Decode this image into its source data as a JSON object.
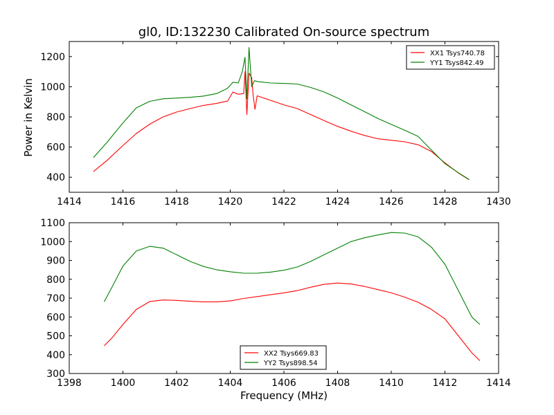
{
  "chart_data": [
    {
      "type": "line",
      "title": "gl0, ID:132230 Calibrated On-source spectrum",
      "xlabel": "",
      "ylabel": "Power in Kelvin",
      "xlim": [
        1414,
        1430
      ],
      "ylim": [
        300,
        1300
      ],
      "xticks": [
        1414,
        1416,
        1418,
        1420,
        1422,
        1424,
        1426,
        1428,
        1430
      ],
      "yticks": [
        400,
        600,
        800,
        1000,
        1200
      ],
      "legend_position": "top-right",
      "grid": false,
      "series": [
        {
          "name": "XX1 Tsys740.78",
          "color": "#ff0000",
          "points": [
            [
              1414.9,
              437
            ],
            [
              1415.4,
              510
            ],
            [
              1416.0,
              610
            ],
            [
              1416.5,
              690
            ],
            [
              1417.0,
              752
            ],
            [
              1417.5,
              800
            ],
            [
              1418.0,
              832
            ],
            [
              1418.5,
              855
            ],
            [
              1419.0,
              876
            ],
            [
              1419.5,
              890
            ],
            [
              1419.9,
              905
            ],
            [
              1420.1,
              965
            ],
            [
              1420.3,
              950
            ],
            [
              1420.5,
              955
            ],
            [
              1420.55,
              1100
            ],
            [
              1420.62,
              815
            ],
            [
              1420.7,
              1090
            ],
            [
              1420.8,
              1060
            ],
            [
              1420.85,
              950
            ],
            [
              1420.92,
              850
            ],
            [
              1421.0,
              940
            ],
            [
              1421.5,
              910
            ],
            [
              1422.0,
              880
            ],
            [
              1422.5,
              855
            ],
            [
              1423.0,
              815
            ],
            [
              1423.5,
              775
            ],
            [
              1424.0,
              737
            ],
            [
              1424.5,
              705
            ],
            [
              1425.0,
              677
            ],
            [
              1425.5,
              655
            ],
            [
              1426.0,
              645
            ],
            [
              1426.5,
              635
            ],
            [
              1427.0,
              615
            ],
            [
              1427.5,
              570
            ],
            [
              1428.0,
              495
            ],
            [
              1428.5,
              428
            ],
            [
              1428.9,
              383
            ]
          ]
        },
        {
          "name": "YY1 Tsys842.49",
          "color": "#008000",
          "points": [
            [
              1414.9,
              530
            ],
            [
              1415.4,
              630
            ],
            [
              1416.0,
              760
            ],
            [
              1416.5,
              860
            ],
            [
              1417.0,
              903
            ],
            [
              1417.5,
              920
            ],
            [
              1418.0,
              925
            ],
            [
              1418.5,
              930
            ],
            [
              1419.0,
              938
            ],
            [
              1419.5,
              955
            ],
            [
              1419.9,
              990
            ],
            [
              1420.1,
              1030
            ],
            [
              1420.3,
              1025
            ],
            [
              1420.45,
              1100
            ],
            [
              1420.55,
              1195
            ],
            [
              1420.62,
              920
            ],
            [
              1420.7,
              1260
            ],
            [
              1420.8,
              1000
            ],
            [
              1420.9,
              1040
            ],
            [
              1421.0,
              1035
            ],
            [
              1421.5,
              1025
            ],
            [
              1422.0,
              1022
            ],
            [
              1422.5,
              1018
            ],
            [
              1423.0,
              995
            ],
            [
              1423.5,
              965
            ],
            [
              1424.0,
              925
            ],
            [
              1424.5,
              880
            ],
            [
              1425.0,
              835
            ],
            [
              1425.5,
              790
            ],
            [
              1426.0,
              750
            ],
            [
              1426.5,
              712
            ],
            [
              1427.0,
              670
            ],
            [
              1427.5,
              580
            ],
            [
              1428.0,
              490
            ],
            [
              1428.5,
              430
            ],
            [
              1428.9,
              385
            ]
          ]
        }
      ]
    },
    {
      "type": "line",
      "title": "",
      "xlabel": "Frequency (MHz)",
      "ylabel": "",
      "xlim": [
        1398,
        1414
      ],
      "ylim": [
        300,
        1100
      ],
      "xticks": [
        1398,
        1400,
        1402,
        1404,
        1406,
        1408,
        1410,
        1412,
        1414
      ],
      "yticks": [
        300,
        400,
        500,
        600,
        700,
        800,
        900,
        1000,
        1100
      ],
      "legend_position": "bottom-center",
      "grid": false,
      "series": [
        {
          "name": "XX2 Tsys669.83",
          "color": "#ff0000",
          "points": [
            [
              1399.3,
              447
            ],
            [
              1399.6,
              490
            ],
            [
              1400.0,
              560
            ],
            [
              1400.5,
              640
            ],
            [
              1401.0,
              682
            ],
            [
              1401.5,
              690
            ],
            [
              1402.0,
              688
            ],
            [
              1402.5,
              683
            ],
            [
              1403.0,
              680
            ],
            [
              1403.5,
              680
            ],
            [
              1404.0,
              685
            ],
            [
              1404.5,
              698
            ],
            [
              1405.0,
              708
            ],
            [
              1405.5,
              718
            ],
            [
              1406.0,
              728
            ],
            [
              1406.5,
              740
            ],
            [
              1407.0,
              758
            ],
            [
              1407.5,
              773
            ],
            [
              1408.0,
              780
            ],
            [
              1408.5,
              775
            ],
            [
              1409.0,
              762
            ],
            [
              1409.5,
              745
            ],
            [
              1410.0,
              728
            ],
            [
              1410.5,
              705
            ],
            [
              1411.0,
              678
            ],
            [
              1411.5,
              640
            ],
            [
              1412.0,
              590
            ],
            [
              1412.5,
              500
            ],
            [
              1413.0,
              410
            ],
            [
              1413.3,
              368
            ]
          ]
        },
        {
          "name": "YY2 Tsys898.54",
          "color": "#008000",
          "points": [
            [
              1399.3,
              680
            ],
            [
              1399.6,
              760
            ],
            [
              1400.0,
              870
            ],
            [
              1400.5,
              950
            ],
            [
              1401.0,
              975
            ],
            [
              1401.5,
              965
            ],
            [
              1402.0,
              930
            ],
            [
              1402.5,
              895
            ],
            [
              1403.0,
              868
            ],
            [
              1403.5,
              850
            ],
            [
              1404.0,
              840
            ],
            [
              1404.5,
              832
            ],
            [
              1405.0,
              832
            ],
            [
              1405.5,
              838
            ],
            [
              1406.0,
              848
            ],
            [
              1406.5,
              865
            ],
            [
              1407.0,
              895
            ],
            [
              1407.5,
              930
            ],
            [
              1408.0,
              965
            ],
            [
              1408.5,
              1000
            ],
            [
              1409.0,
              1020
            ],
            [
              1409.5,
              1035
            ],
            [
              1410.0,
              1048
            ],
            [
              1410.5,
              1045
            ],
            [
              1411.0,
              1025
            ],
            [
              1411.5,
              970
            ],
            [
              1412.0,
              880
            ],
            [
              1412.5,
              740
            ],
            [
              1413.0,
              600
            ],
            [
              1413.3,
              560
            ]
          ]
        }
      ]
    }
  ]
}
